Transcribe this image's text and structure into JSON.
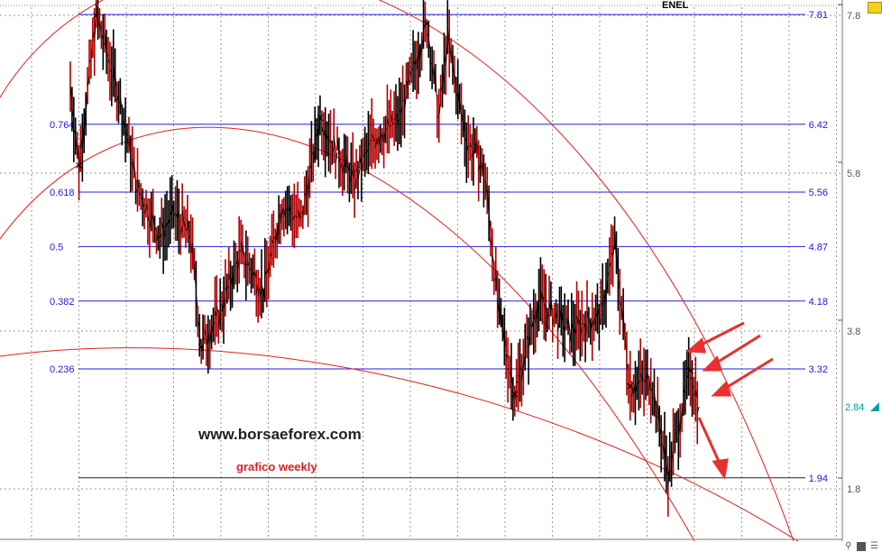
{
  "header": {
    "symbol": "ENEL"
  },
  "watermark": {
    "site": "www.borsaeforex.com",
    "subtitle": "grafico weekly"
  },
  "colors": {
    "fib_line": "#2020e0",
    "arc": "#e02020",
    "price": "#000000",
    "last_price": "#00a0a0",
    "arrow": "#e83030"
  },
  "chart_data": {
    "type": "line",
    "title": "ENEL",
    "y_axis": {
      "ticks": [
        "7.8",
        "5.8",
        "3.8",
        "1.8"
      ],
      "range": [
        1.2,
        8.0
      ],
      "position": "right"
    },
    "last_price": "2.84",
    "fib_levels": [
      {
        "ratio": "",
        "value": "7.81",
        "price": 7.81
      },
      {
        "ratio": "0.764",
        "value": "6.42",
        "price": 6.42
      },
      {
        "ratio": "0.618",
        "value": "5.56",
        "price": 5.56
      },
      {
        "ratio": "0.5",
        "value": "4.87",
        "price": 4.87
      },
      {
        "ratio": "0.382",
        "value": "4.18",
        "price": 4.18
      },
      {
        "ratio": "0.236",
        "value": "3.32",
        "price": 3.32
      },
      {
        "ratio": "",
        "value": "1.94",
        "price": 1.94
      }
    ],
    "price_keypoints": [
      [
        0,
        6.9
      ],
      [
        5,
        5.9
      ],
      [
        15,
        7.8
      ],
      [
        28,
        6.8
      ],
      [
        39,
        5.6
      ],
      [
        52,
        5.0
      ],
      [
        60,
        5.3
      ],
      [
        70,
        5.0
      ],
      [
        76,
        3.6
      ],
      [
        86,
        4.0
      ],
      [
        99,
        4.8
      ],
      [
        112,
        4.3
      ],
      [
        123,
        5.4
      ],
      [
        134,
        5.2
      ],
      [
        145,
        6.5
      ],
      [
        154,
        6.1
      ],
      [
        165,
        5.7
      ],
      [
        175,
        6.2
      ],
      [
        191,
        6.5
      ],
      [
        207,
        7.7
      ],
      [
        214,
        6.5
      ],
      [
        219,
        7.5
      ],
      [
        230,
        6.2
      ],
      [
        237,
        6.0
      ],
      [
        241,
        5.7
      ],
      [
        249,
        4.0
      ],
      [
        258,
        3.0
      ],
      [
        272,
        4.2
      ],
      [
        290,
        3.8
      ],
      [
        308,
        4.0
      ],
      [
        316,
        4.9
      ],
      [
        325,
        3.1
      ],
      [
        337,
        3.2
      ],
      [
        347,
        2.0
      ],
      [
        360,
        3.3
      ],
      [
        365,
        2.84
      ]
    ],
    "swing_points": [
      [
        5,
        5.9
      ],
      [
        15,
        7.8
      ],
      [
        76,
        3.6
      ],
      [
        145,
        6.5
      ],
      [
        207,
        7.7
      ],
      [
        258,
        3.0
      ],
      [
        325,
        3.1
      ],
      [
        347,
        2.0
      ],
      [
        360,
        3.3
      ]
    ]
  }
}
